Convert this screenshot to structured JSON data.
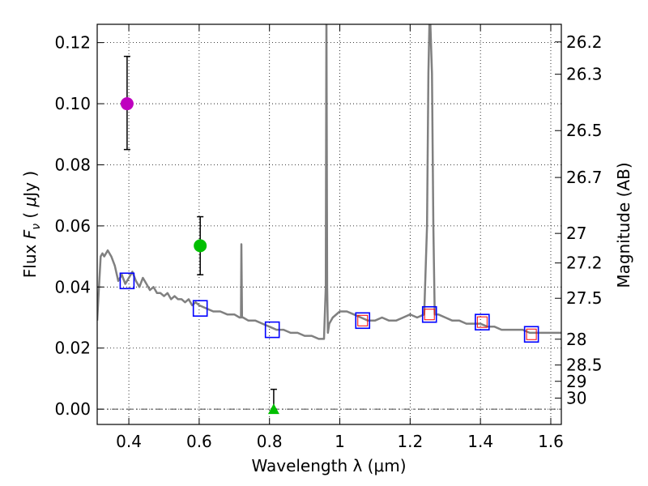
{
  "chart_data": {
    "type": "scatter",
    "xlabel": "Wavelength  λ (μm)",
    "ylabel_parts": [
      "Flux ",
      "F",
      "ν",
      "  ( ",
      "μ",
      "Jy )"
    ],
    "y2label": "Magnitude (AB)",
    "xlim": [
      0.31,
      1.63
    ],
    "ylim": [
      -0.005,
      0.126
    ],
    "grid": true,
    "x_ticks": [
      0.4,
      0.6,
      0.8,
      1.0,
      1.2,
      1.4,
      1.6
    ],
    "x_tick_labels": [
      "0.4",
      "0.6",
      "0.8",
      "1",
      "1.2",
      "1.4",
      "1.6"
    ],
    "y_ticks": [
      0.0,
      0.02,
      0.04,
      0.06,
      0.08,
      0.1,
      0.12
    ],
    "y_tick_labels": [
      "0.00",
      "0.02",
      "0.04",
      "0.06",
      "0.08",
      "0.10",
      "0.12"
    ],
    "mag_ticks": [
      {
        "label": "26.2",
        "mag": 26.2
      },
      {
        "label": "26.3",
        "mag": 26.3
      },
      {
        "label": "26.5",
        "mag": 26.5
      },
      {
        "label": "26.7",
        "mag": 26.7
      },
      {
        "label": "27",
        "mag": 27.0
      },
      {
        "label": "27.2",
        "mag": 27.2
      },
      {
        "label": "27.5",
        "mag": 27.5
      },
      {
        "label": "28",
        "mag": 28.0
      },
      {
        "label": "28.5",
        "mag": 28.5
      },
      {
        "label": "29",
        "mag": 29.0
      },
      {
        "label": "30",
        "mag": 30.0
      }
    ],
    "series": [
      {
        "name": "model spectrum",
        "kind": "line",
        "color": "#808080",
        "x": [
          0.31,
          0.315,
          0.32,
          0.325,
          0.33,
          0.34,
          0.35,
          0.36,
          0.37,
          0.38,
          0.39,
          0.4,
          0.41,
          0.42,
          0.43,
          0.44,
          0.45,
          0.46,
          0.47,
          0.48,
          0.49,
          0.5,
          0.51,
          0.52,
          0.53,
          0.54,
          0.55,
          0.56,
          0.57,
          0.58,
          0.59,
          0.6,
          0.62,
          0.64,
          0.66,
          0.68,
          0.7,
          0.715,
          0.719,
          0.72,
          0.722,
          0.725,
          0.74,
          0.76,
          0.78,
          0.8,
          0.82,
          0.84,
          0.86,
          0.88,
          0.9,
          0.92,
          0.94,
          0.955,
          0.96,
          0.962,
          0.964,
          0.966,
          0.97,
          0.98,
          1.0,
          1.02,
          1.04,
          1.06,
          1.08,
          1.1,
          1.12,
          1.14,
          1.16,
          1.18,
          1.2,
          1.22,
          1.24,
          1.248,
          1.252,
          1.256,
          1.262,
          1.266,
          1.27,
          1.28,
          1.3,
          1.32,
          1.34,
          1.36,
          1.38,
          1.4,
          1.42,
          1.44,
          1.46,
          1.48,
          1.5,
          1.52,
          1.54,
          1.56,
          1.58,
          1.6,
          1.62,
          1.63
        ],
        "y": [
          0.029,
          0.04,
          0.05,
          0.051,
          0.05,
          0.052,
          0.05,
          0.047,
          0.042,
          0.044,
          0.041,
          0.043,
          0.045,
          0.042,
          0.04,
          0.043,
          0.041,
          0.039,
          0.04,
          0.038,
          0.038,
          0.037,
          0.038,
          0.036,
          0.037,
          0.036,
          0.036,
          0.035,
          0.036,
          0.034,
          0.035,
          0.034,
          0.033,
          0.032,
          0.032,
          0.031,
          0.031,
          0.03,
          0.03,
          0.054,
          0.03,
          0.03,
          0.029,
          0.029,
          0.028,
          0.027,
          0.026,
          0.026,
          0.025,
          0.025,
          0.024,
          0.024,
          0.023,
          0.023,
          0.04,
          0.132,
          0.04,
          0.025,
          0.028,
          0.03,
          0.032,
          0.032,
          0.031,
          0.03,
          0.029,
          0.029,
          0.03,
          0.029,
          0.029,
          0.03,
          0.031,
          0.03,
          0.031,
          0.06,
          0.11,
          0.132,
          0.11,
          0.06,
          0.031,
          0.031,
          0.03,
          0.029,
          0.029,
          0.028,
          0.028,
          0.028,
          0.027,
          0.027,
          0.026,
          0.026,
          0.026,
          0.026,
          0.025,
          0.025,
          0.025,
          0.025,
          0.025,
          0.025
        ]
      },
      {
        "name": "model photometry",
        "kind": "open-square",
        "color": "#0000ff",
        "x": [
          0.395,
          0.603,
          0.808,
          1.065,
          1.255,
          1.405,
          1.545
        ],
        "y": [
          0.042,
          0.033,
          0.026,
          0.029,
          0.031,
          0.0285,
          0.0245
        ]
      },
      {
        "name": "observed photometry",
        "kind": "open-square-small",
        "color": "#ff0000",
        "x": [
          1.065,
          1.255,
          1.405,
          1.545
        ],
        "y": [
          0.029,
          0.031,
          0.0285,
          0.0245
        ]
      },
      {
        "name": "detections",
        "kind": "circle-errorbar",
        "points": [
          {
            "x": 0.395,
            "y": 0.1,
            "err_low": 0.085,
            "err_high": 0.1155,
            "color": "#bf00bf"
          },
          {
            "x": 0.603,
            "y": 0.0535,
            "err_low": 0.044,
            "err_high": 0.063,
            "color": "#00bf00"
          }
        ]
      },
      {
        "name": "upper limit",
        "kind": "triangle-errorbar",
        "points": [
          {
            "x": 0.812,
            "y": 0.0,
            "err_low": 0.0,
            "err_high": 0.0065,
            "color": "#00bf00"
          }
        ]
      }
    ]
  }
}
